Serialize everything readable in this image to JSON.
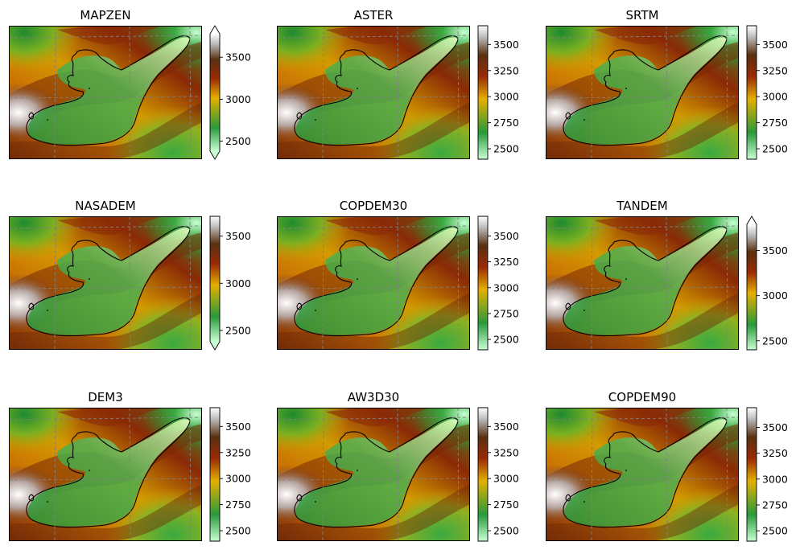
{
  "chart_data": {
    "type": "heatmap",
    "layout": "3x3 grid of elevation map panels, each with its own vertical colorbar",
    "colormap": [
      "#c8ffd4",
      "#2a9a3a",
      "#e4b000",
      "#9a2a05",
      "#5a3010",
      "#c0c0c0",
      "#ffffff"
    ],
    "gridlines": "dashed grey",
    "outline": "black glacier outline",
    "panels": [
      {
        "title": "MAPZEN",
        "vmin": 2380,
        "vmax": 3780,
        "ticks": [
          2500,
          3000,
          3500
        ],
        "extend": "both"
      },
      {
        "title": "ASTER",
        "vmin": 2400,
        "vmax": 3680,
        "ticks": [
          2500,
          2750,
          3000,
          3250,
          3500
        ],
        "extend": "neither"
      },
      {
        "title": "SRTM",
        "vmin": 2400,
        "vmax": 3680,
        "ticks": [
          2500,
          2750,
          3000,
          3250,
          3500
        ],
        "extend": "neither"
      },
      {
        "title": "NASADEM",
        "vmin": 2380,
        "vmax": 3710,
        "ticks": [
          2500,
          3000,
          3500
        ],
        "extend": "min"
      },
      {
        "title": "COPDEM30",
        "vmin": 2400,
        "vmax": 3690,
        "ticks": [
          2500,
          2750,
          3000,
          3250,
          3500
        ],
        "extend": "neither"
      },
      {
        "title": "TANDEM",
        "vmin": 2400,
        "vmax": 3790,
        "ticks": [
          2500,
          3000,
          3500
        ],
        "extend": "max"
      },
      {
        "title": "DEM3",
        "vmin": 2400,
        "vmax": 3680,
        "ticks": [
          2500,
          2750,
          3000,
          3250,
          3500
        ],
        "extend": "neither"
      },
      {
        "title": "AW3D30",
        "vmin": 2400,
        "vmax": 3680,
        "ticks": [
          2500,
          2750,
          3000,
          3250,
          3500
        ],
        "extend": "neither"
      },
      {
        "title": "COPDEM90",
        "vmin": 2400,
        "vmax": 3690,
        "ticks": [
          2500,
          2750,
          3000,
          3250,
          3500
        ],
        "extend": "neither"
      }
    ]
  }
}
